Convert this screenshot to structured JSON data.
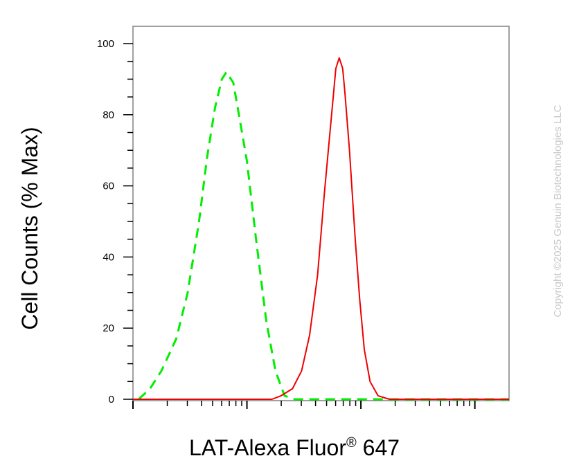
{
  "chart_data": {
    "type": "line",
    "xlabel_main": "LAT-Alexa Fluor",
    "xlabel_sup": "®",
    "xlabel_tail": " 647",
    "ylabel": "Cell Counts (% Max)",
    "y_ticks": [
      "0",
      "20",
      "40",
      "60",
      "80",
      "100"
    ],
    "ylim": [
      0,
      105
    ],
    "xlim": [
      -1.0,
      2.3
    ],
    "x_scale": "log",
    "grid": false,
    "series": [
      {
        "color": "#00ee00",
        "style": "dashed",
        "points": [
          [
            -0.95,
            0
          ],
          [
            -0.85,
            3
          ],
          [
            -0.75,
            8
          ],
          [
            -0.62,
            17
          ],
          [
            -0.52,
            30
          ],
          [
            -0.42,
            50
          ],
          [
            -0.35,
            68
          ],
          [
            -0.28,
            82
          ],
          [
            -0.22,
            90
          ],
          [
            -0.18,
            92
          ],
          [
            -0.12,
            89
          ],
          [
            -0.07,
            80
          ],
          [
            0.0,
            67
          ],
          [
            0.08,
            45
          ],
          [
            0.17,
            22
          ],
          [
            0.25,
            8
          ],
          [
            0.33,
            1
          ],
          [
            0.42,
            0
          ],
          [
            2.3,
            0
          ]
        ]
      },
      {
        "color": "#ee0000",
        "style": "solid",
        "points": [
          [
            -1.0,
            0
          ],
          [
            0.22,
            0
          ],
          [
            0.3,
            1
          ],
          [
            0.4,
            3
          ],
          [
            0.48,
            8
          ],
          [
            0.55,
            18
          ],
          [
            0.62,
            35
          ],
          [
            0.68,
            58
          ],
          [
            0.72,
            72
          ],
          [
            0.76,
            86
          ],
          [
            0.78,
            93
          ],
          [
            0.81,
            96
          ],
          [
            0.84,
            93
          ],
          [
            0.86,
            86
          ],
          [
            0.9,
            70
          ],
          [
            0.95,
            45
          ],
          [
            0.99,
            28
          ],
          [
            1.03,
            14
          ],
          [
            1.08,
            5
          ],
          [
            1.15,
            1
          ],
          [
            1.25,
            0
          ],
          [
            2.3,
            0
          ]
        ]
      }
    ]
  },
  "watermark": "Copyright ©2025 Genuin Biotechnologies LLC"
}
